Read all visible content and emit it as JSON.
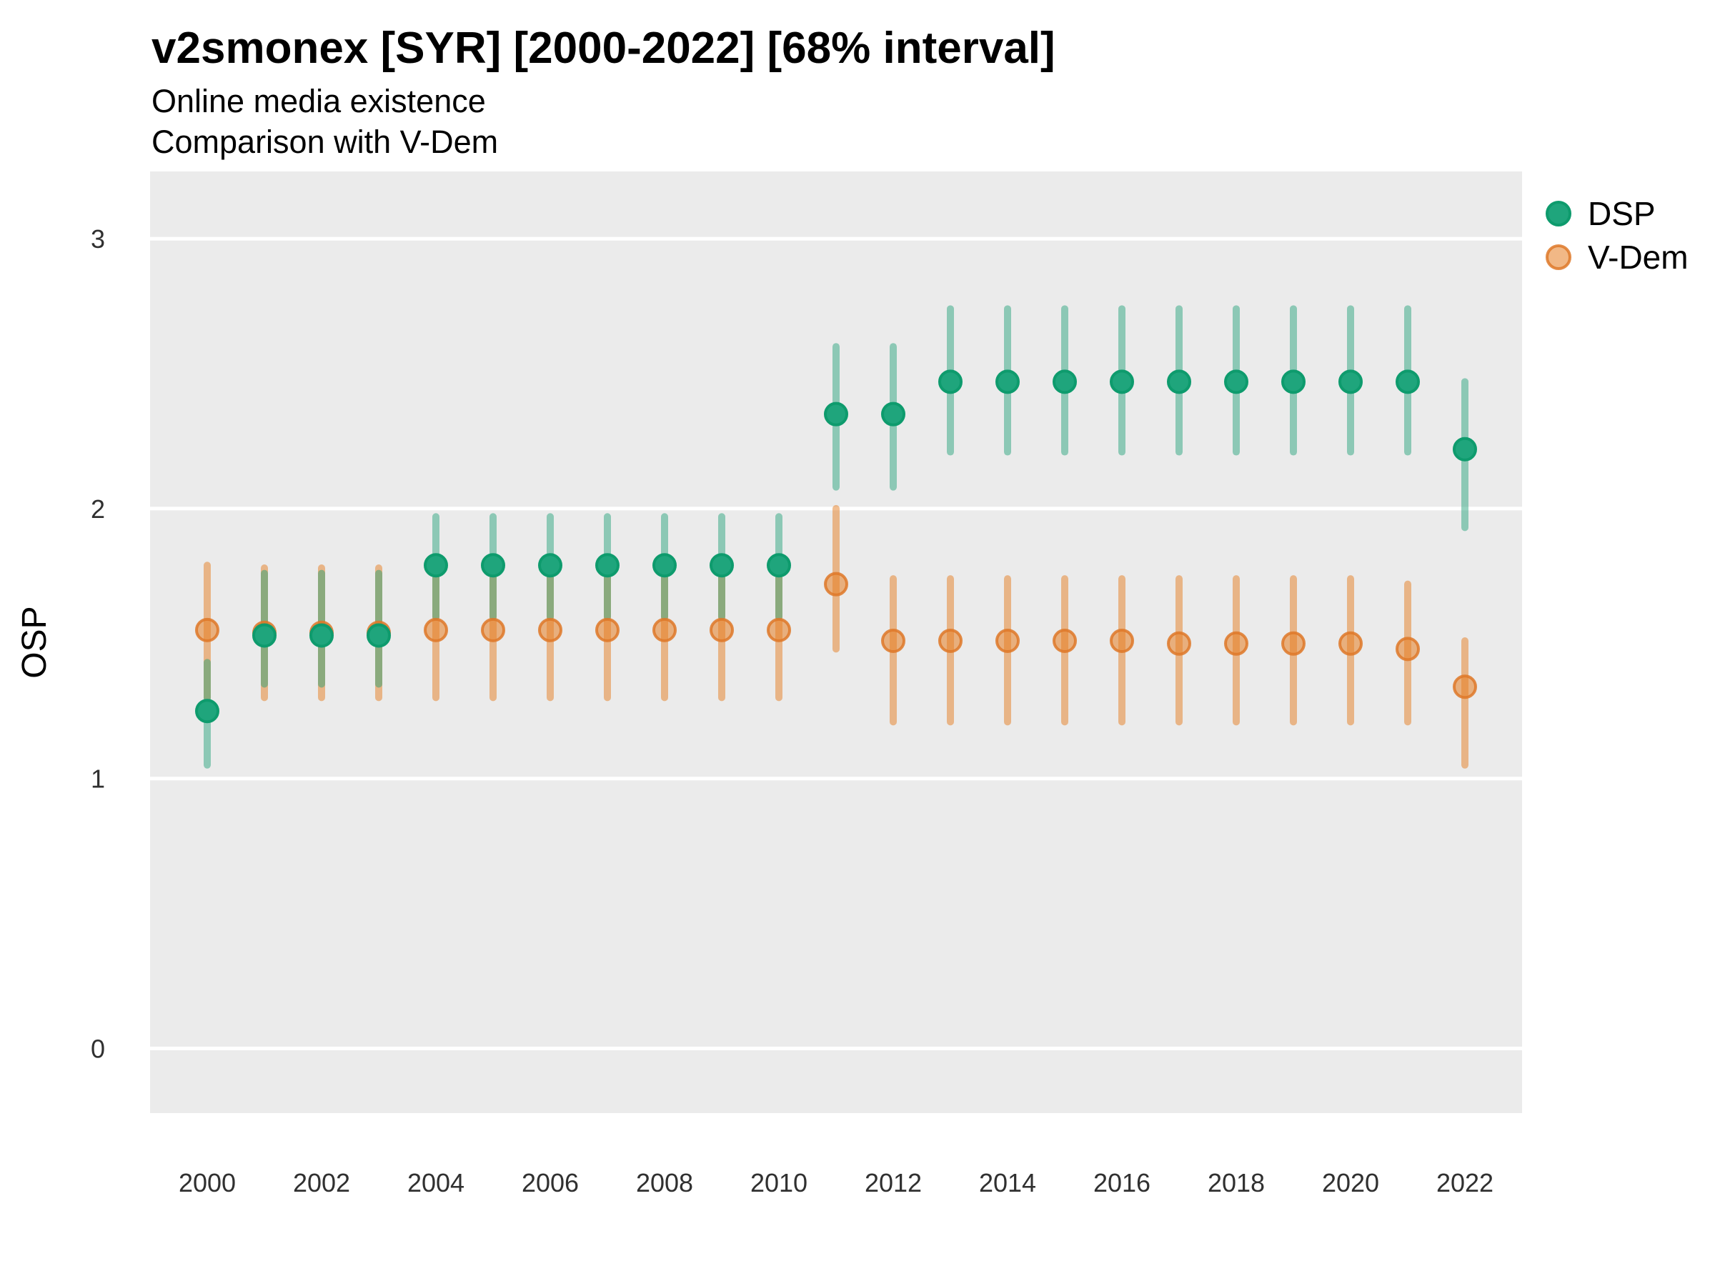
{
  "header": {
    "title": "v2smonex [SYR] [2000-2022] [68% interval]",
    "subtitle_line1": "Online media existence",
    "subtitle_line2": "Comparison with V-Dem"
  },
  "legend": {
    "position": "right-top",
    "items": [
      {
        "label": "DSP",
        "series": "dsp",
        "swatch": "filled-green-circle"
      },
      {
        "label": "V-Dem",
        "series": "vdem",
        "swatch": "translucent-orange-circle"
      }
    ]
  },
  "colors": {
    "page_background": "#FFFFFF",
    "panel_background": "#EBEBEB",
    "gridline": "#FFFFFF",
    "title_text": "#000000",
    "tick_text": "#303030",
    "dsp_point_fill": "#1FA57C",
    "dsp_point_stroke": "#0E9B6D",
    "dsp_interval": "rgba(24,158,115,0.45)",
    "vdem_point_fill": "rgba(230,126,34,0.55)",
    "vdem_point_stroke": "rgba(222,120,40,0.85)",
    "vdem_interval": "rgba(230,126,34,0.5)"
  },
  "chart_data": {
    "type": "pointrange",
    "interval_note": "68% interval dot-and-whisker, DSP vs V-Dem by year",
    "title": "v2smonex [SYR] [2000-2022] [68% interval]",
    "xlabel": "",
    "ylabel": "OSP",
    "x_axis": {
      "tick_labels": [
        "2000",
        "2002",
        "2004",
        "2006",
        "2008",
        "2010",
        "2012",
        "2014",
        "2016",
        "2018",
        "2020",
        "2022"
      ]
    },
    "y_axis": {
      "label": "OSP",
      "tick_labels": [
        "0",
        "1",
        "2",
        "3"
      ],
      "ticks": [
        0,
        1,
        2,
        3
      ],
      "ylim_shown": [
        -0.24,
        3.24
      ]
    },
    "grid": "major horizontal only",
    "legend_entries": [
      "DSP",
      "V-Dem"
    ],
    "series": [
      {
        "name": "DSP",
        "points": [
          {
            "year": 2000,
            "value": 1.25,
            "lo": 1.05,
            "hi": 1.43
          },
          {
            "year": 2001,
            "value": 1.53,
            "lo": 1.35,
            "hi": 1.76
          },
          {
            "year": 2002,
            "value": 1.53,
            "lo": 1.35,
            "hi": 1.76
          },
          {
            "year": 2003,
            "value": 1.53,
            "lo": 1.35,
            "hi": 1.76
          },
          {
            "year": 2004,
            "value": 1.79,
            "lo": 1.6,
            "hi": 1.97
          },
          {
            "year": 2005,
            "value": 1.79,
            "lo": 1.6,
            "hi": 1.97
          },
          {
            "year": 2006,
            "value": 1.79,
            "lo": 1.6,
            "hi": 1.97
          },
          {
            "year": 2007,
            "value": 1.79,
            "lo": 1.6,
            "hi": 1.97
          },
          {
            "year": 2008,
            "value": 1.79,
            "lo": 1.6,
            "hi": 1.97
          },
          {
            "year": 2009,
            "value": 1.79,
            "lo": 1.6,
            "hi": 1.97
          },
          {
            "year": 2010,
            "value": 1.79,
            "lo": 1.6,
            "hi": 1.97
          },
          {
            "year": 2011,
            "value": 2.35,
            "lo": 2.08,
            "hi": 2.6
          },
          {
            "year": 2012,
            "value": 2.35,
            "lo": 2.08,
            "hi": 2.6
          },
          {
            "year": 2013,
            "value": 2.47,
            "lo": 2.21,
            "hi": 2.74
          },
          {
            "year": 2014,
            "value": 2.47,
            "lo": 2.21,
            "hi": 2.74
          },
          {
            "year": 2015,
            "value": 2.47,
            "lo": 2.21,
            "hi": 2.74
          },
          {
            "year": 2016,
            "value": 2.47,
            "lo": 2.21,
            "hi": 2.74
          },
          {
            "year": 2017,
            "value": 2.47,
            "lo": 2.21,
            "hi": 2.74
          },
          {
            "year": 2018,
            "value": 2.47,
            "lo": 2.21,
            "hi": 2.74
          },
          {
            "year": 2019,
            "value": 2.47,
            "lo": 2.21,
            "hi": 2.74
          },
          {
            "year": 2020,
            "value": 2.47,
            "lo": 2.21,
            "hi": 2.74
          },
          {
            "year": 2021,
            "value": 2.47,
            "lo": 2.21,
            "hi": 2.74
          },
          {
            "year": 2022,
            "value": 2.22,
            "lo": 1.93,
            "hi": 2.47
          }
        ]
      },
      {
        "name": "V-Dem",
        "points": [
          {
            "year": 2000,
            "value": 1.55,
            "lo": 1.3,
            "hi": 1.79
          },
          {
            "year": 2001,
            "value": 1.54,
            "lo": 1.3,
            "hi": 1.78
          },
          {
            "year": 2002,
            "value": 1.54,
            "lo": 1.3,
            "hi": 1.78
          },
          {
            "year": 2003,
            "value": 1.54,
            "lo": 1.3,
            "hi": 1.78
          },
          {
            "year": 2004,
            "value": 1.55,
            "lo": 1.3,
            "hi": 1.8
          },
          {
            "year": 2005,
            "value": 1.55,
            "lo": 1.3,
            "hi": 1.8
          },
          {
            "year": 2006,
            "value": 1.55,
            "lo": 1.3,
            "hi": 1.8
          },
          {
            "year": 2007,
            "value": 1.55,
            "lo": 1.3,
            "hi": 1.8
          },
          {
            "year": 2008,
            "value": 1.55,
            "lo": 1.3,
            "hi": 1.8
          },
          {
            "year": 2009,
            "value": 1.55,
            "lo": 1.3,
            "hi": 1.8
          },
          {
            "year": 2010,
            "value": 1.55,
            "lo": 1.3,
            "hi": 1.8
          },
          {
            "year": 2011,
            "value": 1.72,
            "lo": 1.48,
            "hi": 2.0
          },
          {
            "year": 2012,
            "value": 1.51,
            "lo": 1.21,
            "hi": 1.74
          },
          {
            "year": 2013,
            "value": 1.51,
            "lo": 1.21,
            "hi": 1.74
          },
          {
            "year": 2014,
            "value": 1.51,
            "lo": 1.21,
            "hi": 1.74
          },
          {
            "year": 2015,
            "value": 1.51,
            "lo": 1.21,
            "hi": 1.74
          },
          {
            "year": 2016,
            "value": 1.51,
            "lo": 1.21,
            "hi": 1.74
          },
          {
            "year": 2017,
            "value": 1.5,
            "lo": 1.21,
            "hi": 1.74
          },
          {
            "year": 2018,
            "value": 1.5,
            "lo": 1.21,
            "hi": 1.74
          },
          {
            "year": 2019,
            "value": 1.5,
            "lo": 1.21,
            "hi": 1.74
          },
          {
            "year": 2020,
            "value": 1.5,
            "lo": 1.21,
            "hi": 1.74
          },
          {
            "year": 2021,
            "value": 1.48,
            "lo": 1.21,
            "hi": 1.72
          },
          {
            "year": 2022,
            "value": 1.34,
            "lo": 1.05,
            "hi": 1.51
          }
        ]
      }
    ]
  }
}
